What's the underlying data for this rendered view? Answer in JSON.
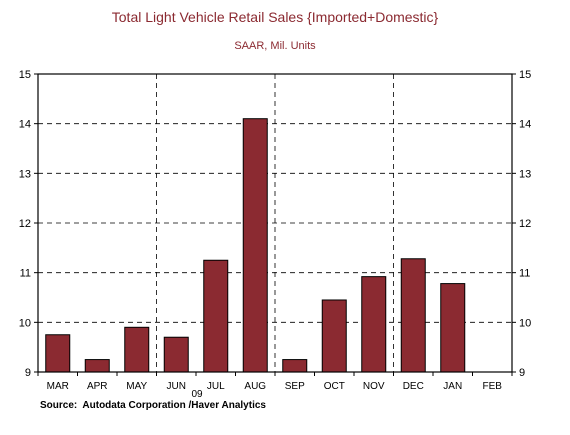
{
  "chart_data": {
    "type": "bar",
    "title": "Total Light Vehicle Retail Sales {Imported+Domestic}",
    "subtitle": "SAAR, Mil. Units",
    "categories": [
      "MAR",
      "APR",
      "MAY",
      "JUN",
      "JUL",
      "AUG",
      "SEP",
      "OCT",
      "NOV",
      "DEC",
      "JAN",
      "FEB"
    ],
    "values": [
      9.75,
      9.25,
      9.9,
      9.7,
      11.25,
      14.1,
      9.25,
      10.45,
      10.92,
      11.28,
      10.78,
      null
    ],
    "year_label": "09",
    "ylim": [
      9,
      15
    ],
    "yticks": [
      "9",
      "10",
      "11",
      "12",
      "13",
      "14",
      "15"
    ],
    "grid": true,
    "source": "Source:  Autodata Corporation /Haver Analytics",
    "colors": {
      "bar": "#8b2a31",
      "title": "#8b2a31",
      "axis": "#000000",
      "grid": "#000000"
    }
  }
}
